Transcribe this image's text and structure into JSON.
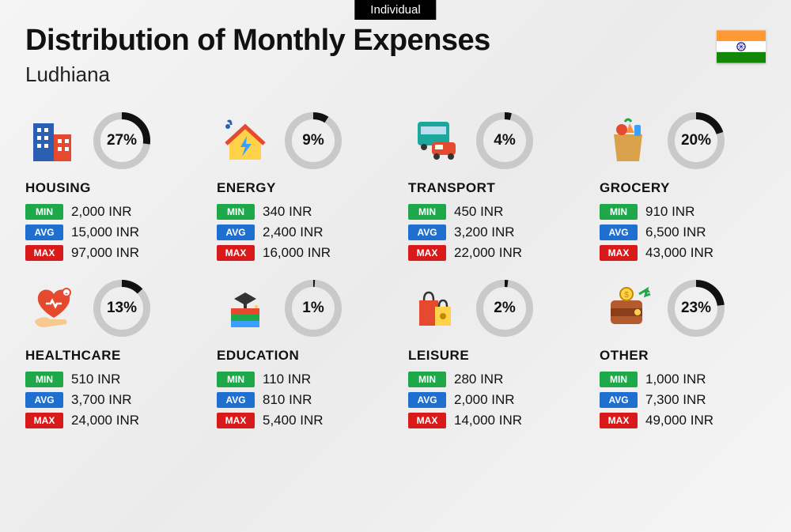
{
  "badge": "Individual",
  "title": "Distribution of Monthly Expenses",
  "subtitle": "Ludhiana",
  "currency": "INR",
  "labels": {
    "min": "MIN",
    "avg": "AVG",
    "max": "MAX"
  },
  "colors": {
    "min_bg": "#1fa84a",
    "avg_bg": "#1f6fd1",
    "max_bg": "#d91a1a",
    "donut_track": "#c9c9c9",
    "donut_fill": "#111111",
    "text": "#111111",
    "background": "#f3f3f3"
  },
  "donut": {
    "size": 72,
    "stroke_width": 9,
    "font_size": 19
  },
  "flag": {
    "stripes": [
      "#ff9933",
      "#ffffff",
      "#138808"
    ],
    "chakra": "#000080"
  },
  "categories": [
    {
      "key": "housing",
      "name": "HOUSING",
      "pct": 27,
      "min": "2,000",
      "avg": "15,000",
      "max": "97,000",
      "icon": "buildings"
    },
    {
      "key": "energy",
      "name": "ENERGY",
      "pct": 9,
      "min": "340",
      "avg": "2,400",
      "max": "16,000",
      "icon": "energy-house"
    },
    {
      "key": "transport",
      "name": "TRANSPORT",
      "pct": 4,
      "min": "450",
      "avg": "3,200",
      "max": "22,000",
      "icon": "bus-car"
    },
    {
      "key": "grocery",
      "name": "GROCERY",
      "pct": 20,
      "min": "910",
      "avg": "6,500",
      "max": "43,000",
      "icon": "grocery-bag"
    },
    {
      "key": "healthcare",
      "name": "HEALTHCARE",
      "pct": 13,
      "min": "510",
      "avg": "3,700",
      "max": "24,000",
      "icon": "heart-hand"
    },
    {
      "key": "education",
      "name": "EDUCATION",
      "pct": 1,
      "min": "110",
      "avg": "810",
      "max": "5,400",
      "icon": "books-cap"
    },
    {
      "key": "leisure",
      "name": "LEISURE",
      "pct": 2,
      "min": "280",
      "avg": "2,000",
      "max": "14,000",
      "icon": "shopping-bags"
    },
    {
      "key": "other",
      "name": "OTHER",
      "pct": 23,
      "min": "1,000",
      "avg": "7,300",
      "max": "49,000",
      "icon": "wallet"
    }
  ]
}
